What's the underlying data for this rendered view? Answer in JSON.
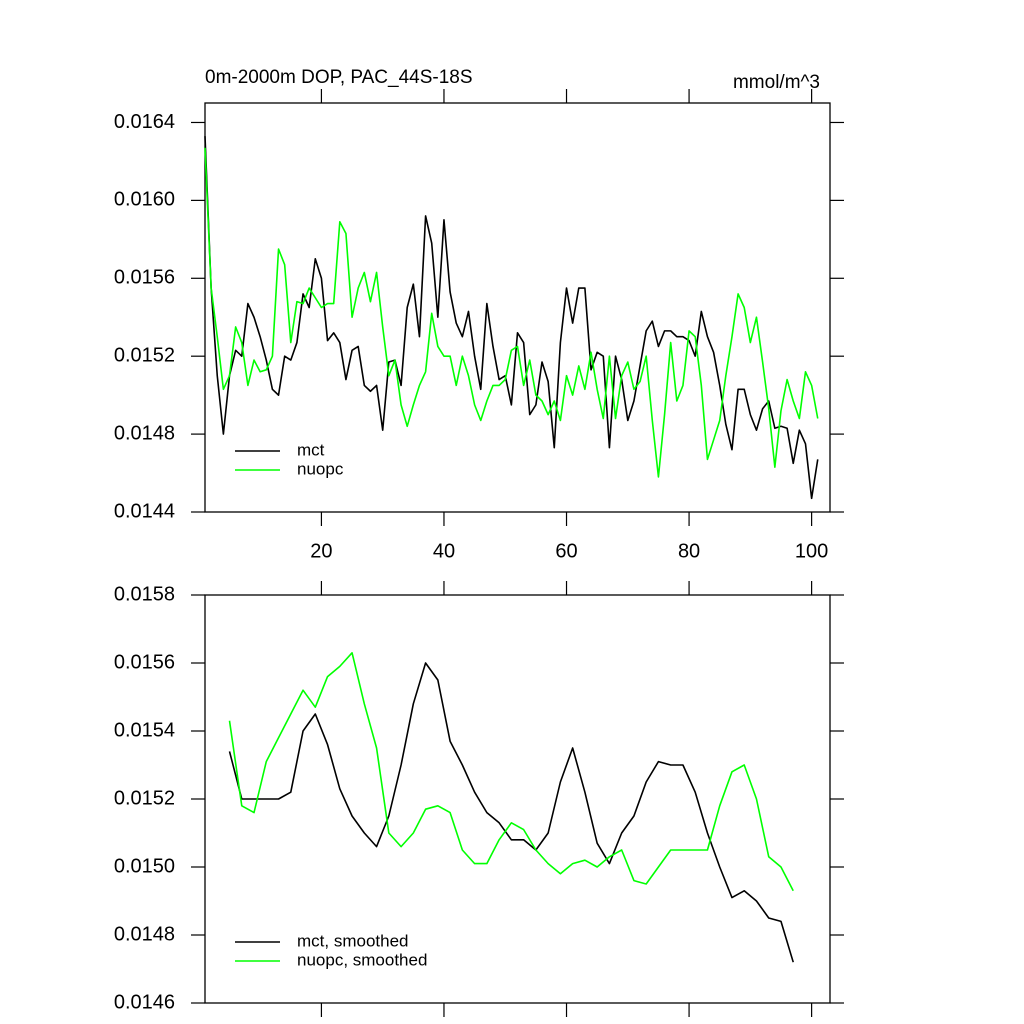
{
  "chart_data": [
    {
      "type": "line",
      "title": "0m-2000m DOP, PAC_44S-18S",
      "units": "mmol/m^3",
      "x": [
        1,
        2,
        3,
        4,
        5,
        6,
        7,
        8,
        9,
        10,
        11,
        12,
        13,
        14,
        15,
        16,
        17,
        18,
        19,
        20,
        21,
        22,
        23,
        24,
        25,
        26,
        27,
        28,
        29,
        30,
        31,
        32,
        33,
        34,
        35,
        36,
        37,
        38,
        39,
        40,
        41,
        42,
        43,
        44,
        45,
        46,
        47,
        48,
        49,
        50,
        51,
        52,
        53,
        54,
        55,
        56,
        57,
        58,
        59,
        60,
        61,
        62,
        63,
        64,
        65,
        66,
        67,
        68,
        69,
        70,
        71,
        72,
        73,
        74,
        75,
        76,
        77,
        78,
        79,
        80,
        81,
        82,
        83,
        84,
        85,
        86,
        87,
        88,
        89,
        90,
        91,
        92,
        93,
        94,
        95,
        96,
        97,
        98,
        99,
        100,
        101
      ],
      "series": [
        {
          "name": "mct",
          "color": "#000000",
          "values": [
            0.01633,
            0.01555,
            0.0151,
            0.0148,
            0.0151,
            0.01523,
            0.0152,
            0.01547,
            0.0154,
            0.0153,
            0.01518,
            0.01503,
            0.015,
            0.0152,
            0.01518,
            0.01527,
            0.01552,
            0.01545,
            0.0157,
            0.0156,
            0.01528,
            0.01532,
            0.01527,
            0.01508,
            0.01523,
            0.01525,
            0.01505,
            0.01502,
            0.01505,
            0.01482,
            0.01517,
            0.01518,
            0.01505,
            0.01545,
            0.01557,
            0.0153,
            0.01592,
            0.01578,
            0.0154,
            0.0159,
            0.01553,
            0.01537,
            0.0153,
            0.01543,
            0.0152,
            0.01503,
            0.01547,
            0.01525,
            0.01508,
            0.0151,
            0.01495,
            0.01532,
            0.01527,
            0.0149,
            0.01495,
            0.01517,
            0.01507,
            0.01473,
            0.01527,
            0.01555,
            0.01537,
            0.01555,
            0.01555,
            0.01513,
            0.01522,
            0.0152,
            0.01473,
            0.0152,
            0.01508,
            0.01487,
            0.01497,
            0.01515,
            0.01533,
            0.01538,
            0.01525,
            0.01533,
            0.01533,
            0.0153,
            0.0153,
            0.01528,
            0.0152,
            0.01543,
            0.0153,
            0.01522,
            0.01505,
            0.01485,
            0.01472,
            0.01503,
            0.01503,
            0.0149,
            0.01482,
            0.01493,
            0.01497,
            0.01483,
            0.01484,
            0.01483,
            0.01465,
            0.01482,
            0.01475,
            0.01447,
            0.01467
          ]
        },
        {
          "name": "nuopc",
          "color": "#00ff00",
          "values": [
            0.01627,
            0.01555,
            0.0153,
            0.01503,
            0.0151,
            0.01535,
            0.01527,
            0.01505,
            0.01518,
            0.01512,
            0.01513,
            0.0152,
            0.01575,
            0.01567,
            0.01527,
            0.01548,
            0.01547,
            0.01555,
            0.0155,
            0.01545,
            0.01547,
            0.01547,
            0.01589,
            0.01583,
            0.0154,
            0.01555,
            0.01563,
            0.01548,
            0.01563,
            0.01535,
            0.0151,
            0.01518,
            0.01495,
            0.01484,
            0.01495,
            0.01505,
            0.01512,
            0.01542,
            0.01525,
            0.0152,
            0.0152,
            0.01505,
            0.0152,
            0.0151,
            0.01495,
            0.01487,
            0.01497,
            0.01505,
            0.01505,
            0.01508,
            0.01523,
            0.01525,
            0.01505,
            0.01518,
            0.015,
            0.01497,
            0.0149,
            0.01497,
            0.01487,
            0.0151,
            0.015,
            0.01515,
            0.01503,
            0.01522,
            0.01503,
            0.01488,
            0.0152,
            0.01488,
            0.0151,
            0.01517,
            0.01503,
            0.01507,
            0.0152,
            0.01487,
            0.01458,
            0.0149,
            0.01527,
            0.01497,
            0.01505,
            0.01533,
            0.0153,
            0.01505,
            0.01467,
            0.01477,
            0.01487,
            0.0151,
            0.0153,
            0.01552,
            0.01545,
            0.01527,
            0.0154,
            0.01517,
            0.01493,
            0.01463,
            0.01492,
            0.01508,
            0.01497,
            0.01488,
            0.01512,
            0.01505,
            0.01488
          ]
        }
      ],
      "xlim": [
        1,
        103
      ],
      "xticks": [
        20,
        40,
        60,
        80,
        100
      ],
      "ylim": [
        0.0144,
        0.0165
      ],
      "yticks": [
        {
          "value": 0.0144,
          "label": "0.0144"
        },
        {
          "value": 0.0148,
          "label": "0.0148"
        },
        {
          "value": 0.0152,
          "label": "0.0152"
        },
        {
          "value": 0.0156,
          "label": "0.0156"
        },
        {
          "value": 0.016,
          "label": "0.0160"
        },
        {
          "value": 0.0164,
          "label": "0.0164"
        }
      ],
      "legend": "lower left"
    },
    {
      "type": "line",
      "x": [
        5,
        7,
        9,
        11,
        13,
        15,
        17,
        19,
        21,
        23,
        25,
        27,
        29,
        31,
        33,
        35,
        37,
        39,
        41,
        43,
        45,
        47,
        49,
        51,
        53,
        55,
        57,
        59,
        61,
        63,
        65,
        67,
        69,
        71,
        73,
        75,
        77,
        79,
        81,
        83,
        85,
        87,
        89,
        91,
        93,
        95,
        97
      ],
      "series": [
        {
          "name": "mct, smoothed",
          "color": "#000000",
          "values": [
            0.01534,
            0.0152,
            0.0152,
            0.0152,
            0.0152,
            0.01522,
            0.0154,
            0.01545,
            0.01536,
            0.01523,
            0.01515,
            0.0151,
            0.01506,
            0.01515,
            0.0153,
            0.01548,
            0.0156,
            0.01555,
            0.01537,
            0.0153,
            0.01522,
            0.01516,
            0.01513,
            0.01508,
            0.01508,
            0.01505,
            0.0151,
            0.01525,
            0.01535,
            0.01522,
            0.01507,
            0.01501,
            0.0151,
            0.01515,
            0.01525,
            0.01531,
            0.0153,
            0.0153,
            0.01522,
            0.0151,
            0.015,
            0.01491,
            0.01493,
            0.0149,
            0.01485,
            0.01484,
            0.01472
          ]
        },
        {
          "name": "nuopc, smoothed",
          "color": "#00ff00",
          "values": [
            0.01543,
            0.01518,
            0.01516,
            0.01531,
            0.01538,
            0.01545,
            0.01552,
            0.01547,
            0.01556,
            0.01559,
            0.01563,
            0.01548,
            0.01535,
            0.0151,
            0.01506,
            0.0151,
            0.01517,
            0.01518,
            0.01516,
            0.01505,
            0.01501,
            0.01501,
            0.01508,
            0.01513,
            0.01511,
            0.01505,
            0.01501,
            0.01498,
            0.01501,
            0.01502,
            0.015,
            0.01503,
            0.01505,
            0.01496,
            0.01495,
            0.015,
            0.01505,
            0.01505,
            0.01505,
            0.01505,
            0.01518,
            0.01528,
            0.0153,
            0.0152,
            0.01503,
            0.015,
            0.01493
          ]
        }
      ],
      "xlim": [
        1,
        103
      ],
      "xticks": [
        20,
        40,
        60,
        80,
        100
      ],
      "ylim": [
        0.0146,
        0.0158
      ],
      "yticks": [
        {
          "value": 0.0146,
          "label": "0.0146"
        },
        {
          "value": 0.0148,
          "label": "0.0148"
        },
        {
          "value": 0.015,
          "label": "0.0150"
        },
        {
          "value": 0.0152,
          "label": "0.0152"
        },
        {
          "value": 0.0154,
          "label": "0.0154"
        },
        {
          "value": 0.0156,
          "label": "0.0156"
        },
        {
          "value": 0.0158,
          "label": "0.0158"
        }
      ],
      "legend": "lower left"
    }
  ]
}
